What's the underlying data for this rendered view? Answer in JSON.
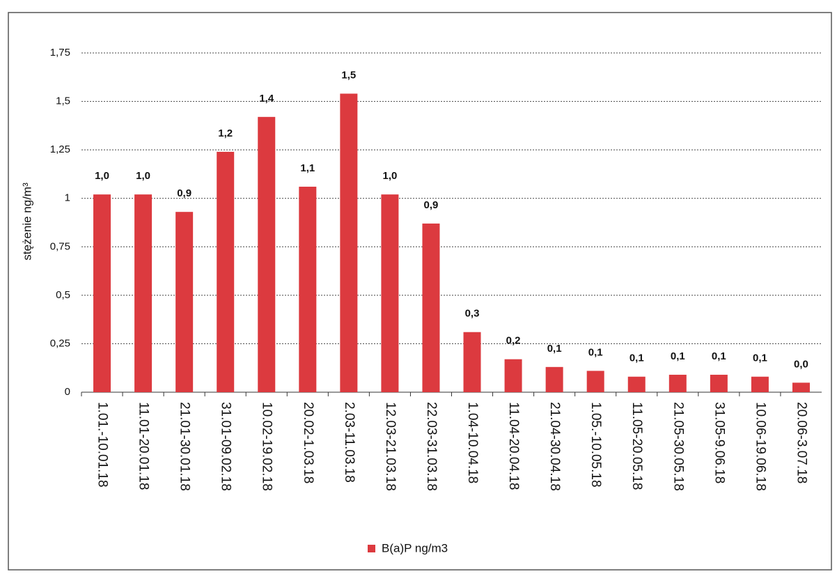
{
  "chart_data": {
    "type": "bar",
    "y_label": "stężenie ng/m³",
    "categories": [
      "1.01.-10.01.18",
      "11.01-20.01.18",
      "21.01-30.01.18",
      "31.01-09.02.18",
      "10.02-19.02.18",
      "20.02-1.03.18",
      "2.03-11.03.18",
      "12.03-21.03.18",
      "22.03-31.03.18",
      "1.04-10.04.18",
      "11.04-20.04.18",
      "21.04-30.04.18",
      "1.05.-10.05.18",
      "11.05-20.05.18",
      "21.05-30.05.18",
      "31.05-9.06.18",
      "10.06-19.06.18",
      "20.06-3.07.18"
    ],
    "series": [
      {
        "name": "B(a)P ng/m3",
        "color": "#dc3a3f",
        "values": [
          1.02,
          1.02,
          0.93,
          1.24,
          1.42,
          1.06,
          1.54,
          1.02,
          0.87,
          0.31,
          0.17,
          0.13,
          0.11,
          0.08,
          0.09,
          0.09,
          0.08,
          0.049
        ],
        "value_labels": [
          "1,0",
          "1,0",
          "0,9",
          "1,2",
          "1,4",
          "1,1",
          "1,5",
          "1,0",
          "0,9",
          "0,3",
          "0,2",
          "0,1",
          "0,1",
          "0,1",
          "0,1",
          "0,1",
          "0,1",
          "0,0"
        ]
      }
    ],
    "ylim": [
      0,
      1.75
    ],
    "yticks": [
      0,
      {
        "value": 0.25,
        "label": "0,25"
      },
      {
        "value": 0.5,
        "label": "0,5"
      },
      {
        "value": 0.75,
        "label": "0,75"
      },
      1,
      {
        "value": 1.25,
        "label": "1,25"
      },
      {
        "value": 1.5,
        "label": "1,5"
      },
      {
        "value": 1.75,
        "label": "1,75"
      }
    ],
    "grid": true,
    "legend": "bottom"
  }
}
